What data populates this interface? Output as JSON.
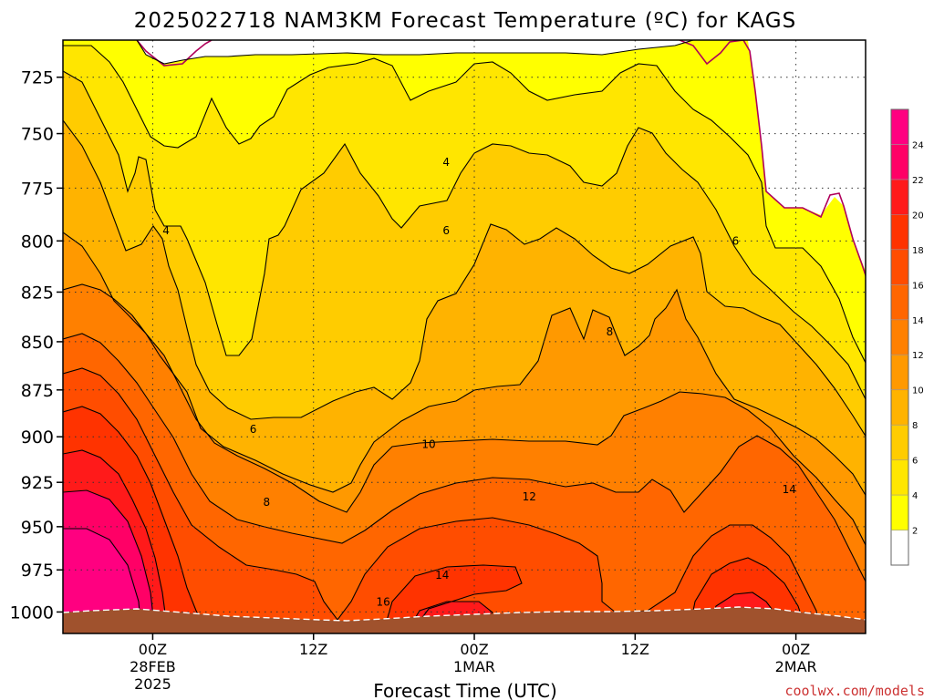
{
  "chart_data": {
    "type": "heatmap",
    "title": "2025022718 NAM3KM Forecast Temperature (ºC) for KAGS",
    "xlabel": "Forecast Time (UTC)",
    "ylabel": "",
    "x_ticks": [
      {
        "hour": 6,
        "lines": [
          "00Z",
          "28FEB",
          "2025"
        ]
      },
      {
        "hour": 18,
        "lines": [
          "12Z"
        ]
      },
      {
        "hour": 30,
        "lines": [
          "00Z",
          "1MAR"
        ]
      },
      {
        "hour": 42,
        "lines": [
          "12Z"
        ]
      },
      {
        "hour": 54,
        "lines": [
          "00Z",
          "2MAR"
        ]
      }
    ],
    "xlim": [
      -0.7,
      59.2
    ],
    "y_ticks": [
      725,
      750,
      775,
      800,
      825,
      850,
      875,
      900,
      925,
      950,
      975,
      1000
    ],
    "ylim": [
      1013,
      709
    ],
    "y_scale": "log",
    "grid": true,
    "colorbar": {
      "levels": [
        2,
        4,
        6,
        8,
        10,
        12,
        14,
        16,
        18,
        20,
        22,
        24
      ],
      "colors": [
        "#ffffff",
        "#ffff00",
        "#ffe600",
        "#ffcc00",
        "#ffb300",
        "#ff9900",
        "#ff8000",
        "#ff6600",
        "#ff4d00",
        "#ff3300",
        "#ff1a1a",
        "#ff0066",
        "#ff0080"
      ]
    },
    "contour_labels": [
      {
        "text": "4",
        "hour": 7,
        "pres": 795
      },
      {
        "text": "4",
        "hour": 27.9,
        "pres": 763
      },
      {
        "text": "6",
        "hour": 13.5,
        "pres": 896
      },
      {
        "text": "6",
        "hour": 27.9,
        "pres": 795
      },
      {
        "text": "6",
        "hour": 49.5,
        "pres": 800
      },
      {
        "text": "8",
        "hour": 14.5,
        "pres": 936
      },
      {
        "text": "8",
        "hour": 40.1,
        "pres": 845
      },
      {
        "text": "10",
        "hour": 26.6,
        "pres": 904
      },
      {
        "text": "12",
        "hour": 34.1,
        "pres": 933
      },
      {
        "text": "14",
        "hour": 27.6,
        "pres": 978
      },
      {
        "text": "14",
        "hour": 53.5,
        "pres": 929
      },
      {
        "text": "16",
        "hour": 23.2,
        "pres": 994
      }
    ],
    "ground_color": "#a0522d",
    "freezing_line_color": "#b0005a"
  },
  "credit": "coolwx.com/models"
}
